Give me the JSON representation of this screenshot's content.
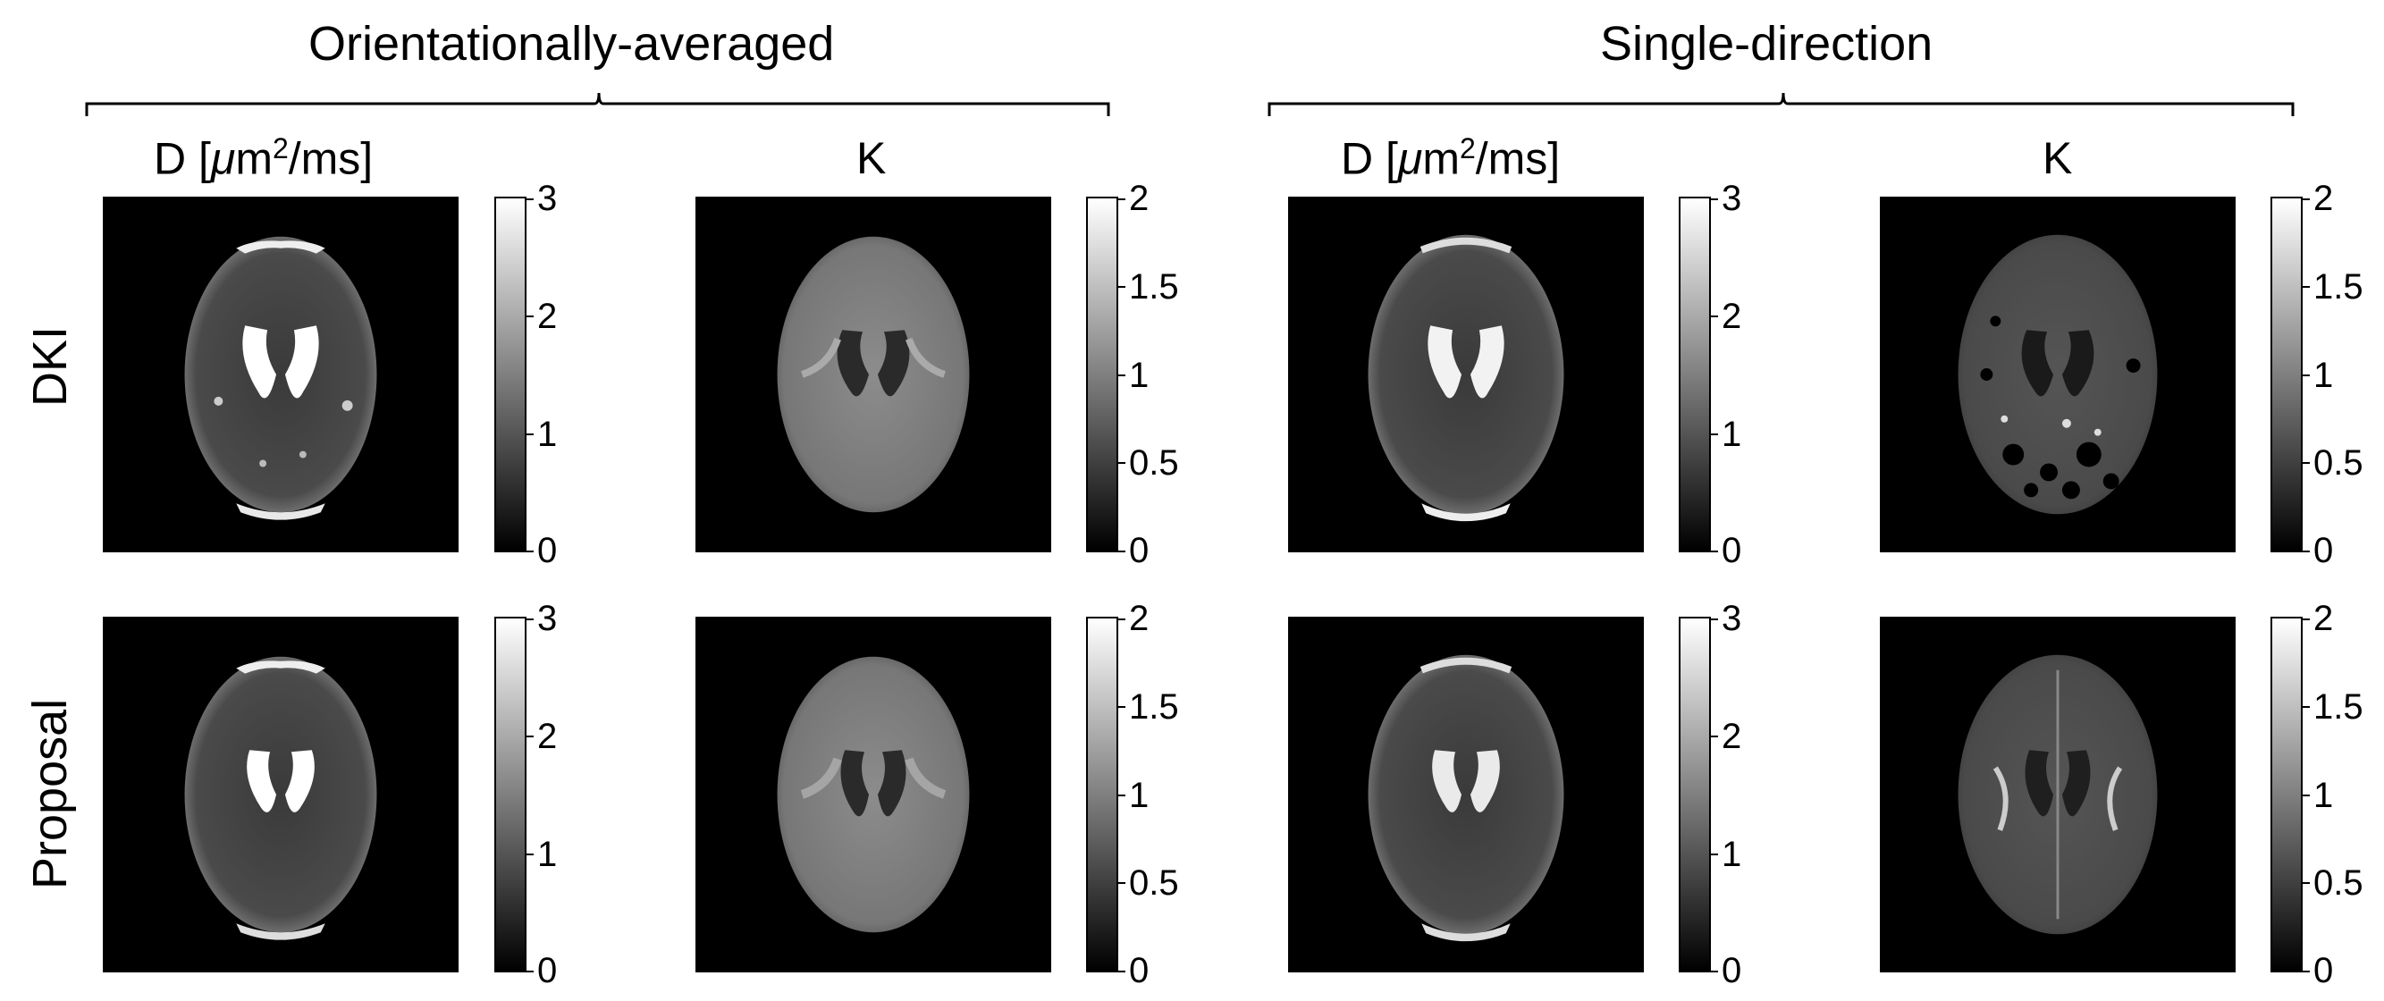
{
  "groups": [
    {
      "title": "Orientationally-averaged"
    },
    {
      "title": "Single-direction"
    }
  ],
  "columns": [
    {
      "title_main": "D [",
      "title_mu": "μ",
      "title_unit": "m",
      "title_exp": "2",
      "title_rest": "/ms]"
    },
    {
      "title": "K"
    },
    {
      "title_main": "D [",
      "title_mu": "μ",
      "title_unit": "m",
      "title_exp": "2",
      "title_rest": "/ms]"
    },
    {
      "title": "K"
    }
  ],
  "rows": [
    {
      "label": "DKI"
    },
    {
      "label": "Proposal"
    }
  ],
  "colorbars": {
    "D": {
      "min": 0,
      "max": 3,
      "ticks": [
        "3",
        "2",
        "1",
        "0"
      ]
    },
    "K": {
      "min": 0,
      "max": 2,
      "ticks": [
        "2",
        "1.5",
        "1",
        "0.5",
        "0"
      ]
    }
  },
  "colormap": "gray"
}
